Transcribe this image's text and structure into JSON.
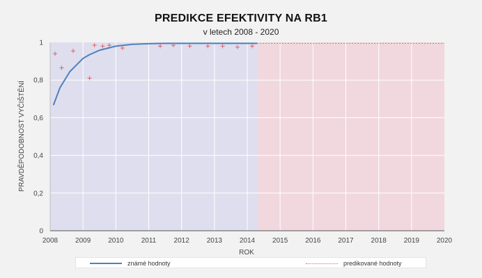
{
  "chart_data": {
    "type": "line",
    "title": "PREDIKCE EFEKTIVITY NA RB1",
    "subtitle": "v letech 2008 - 2020",
    "xlabel": "ROK",
    "ylabel": "PRAVDĚPODOBNOST VYČIŠTĚNÍ",
    "xlim": [
      2008,
      2020
    ],
    "ylim": [
      0,
      1
    ],
    "x_ticks": [
      "2008",
      "2009",
      "2010",
      "2011",
      "2012",
      "2013",
      "2014",
      "2015",
      "2016",
      "2017",
      "2018",
      "2019",
      "2020"
    ],
    "y_ticks": [
      "0",
      "0,2",
      "0,4",
      "0,6",
      "0,8",
      "1"
    ],
    "grid": true,
    "known_region": [
      2008,
      2014.3
    ],
    "predicted_region": [
      2014.3,
      2020
    ],
    "series": [
      {
        "name": "známé hodnoty",
        "kind": "line",
        "color": "#4f81bd",
        "x": [
          2008.1,
          2008.3,
          2008.6,
          2009.0,
          2009.2,
          2009.5,
          2010.0,
          2010.5,
          2011.0,
          2011.5,
          2012.0,
          2012.5,
          2013.0,
          2013.5,
          2014.0,
          2014.3
        ],
        "y": [
          0.667,
          0.76,
          0.845,
          0.915,
          0.935,
          0.958,
          0.98,
          0.99,
          0.993,
          0.995,
          0.995,
          0.995,
          0.995,
          0.995,
          0.995,
          0.995
        ]
      },
      {
        "name": "",
        "kind": "scatter",
        "color": "#e06060",
        "x": [
          2008.15,
          2008.35,
          2008.7,
          2009.2,
          2009.35,
          2009.6,
          2009.8,
          2010.2,
          2011.35,
          2011.75,
          2012.25,
          2012.8,
          2013.25,
          2013.7,
          2014.15
        ],
        "y": [
          0.94,
          0.865,
          0.955,
          0.81,
          0.985,
          0.98,
          0.985,
          0.97,
          0.98,
          0.985,
          0.98,
          0.98,
          0.98,
          0.975,
          0.98
        ]
      },
      {
        "name": "predikované hodnoty",
        "kind": "line",
        "color": "#e06060",
        "x": [
          2014.3,
          2020
        ],
        "y": [
          0.995,
          0.995
        ]
      }
    ],
    "legend_position": "bottom"
  },
  "colors": {
    "known_fill": "#dedeee",
    "predicted_fill": "#f1d8de",
    "grid": "#ffffff",
    "axis": "#555555"
  }
}
